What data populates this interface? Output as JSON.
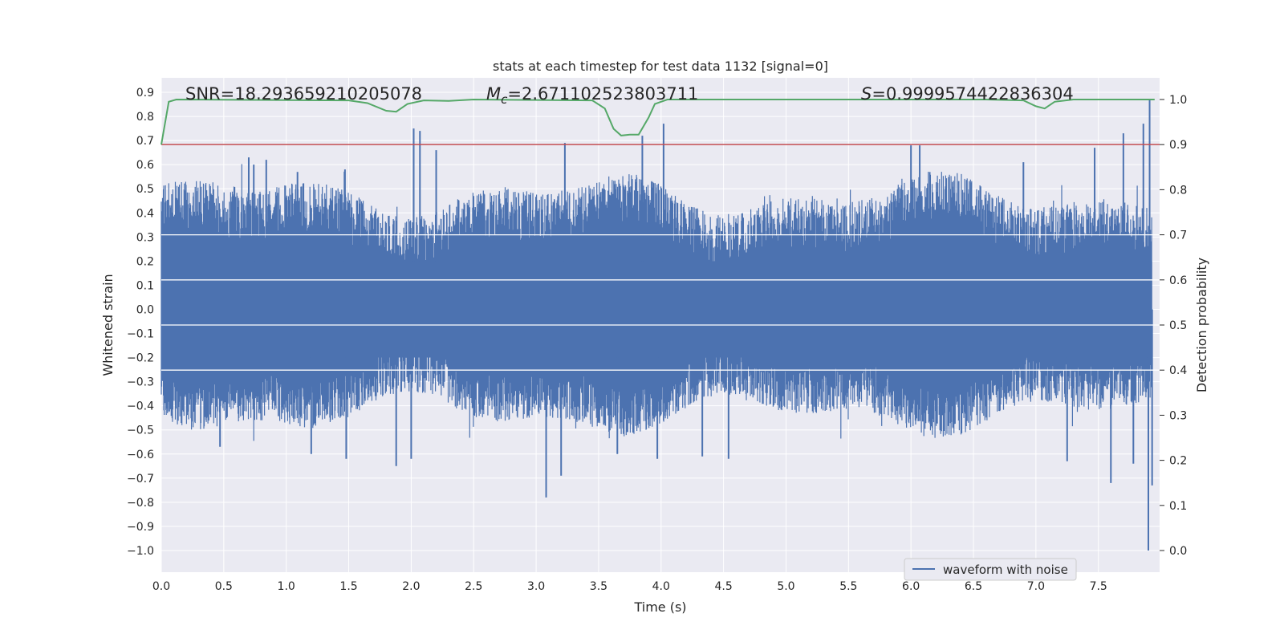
{
  "chart_data": {
    "type": "line",
    "title": "stats at each timestep for test data 1132 [signal=0]",
    "xlabel": "Time (s)",
    "ylabel": "Whitened strain",
    "y2label": "Detection probability",
    "xlim": [
      0.0,
      7.99
    ],
    "ylim": [
      -1.09,
      0.96
    ],
    "y2lim": [
      -0.048,
      1.048
    ],
    "xticks": [
      0.0,
      0.5,
      1.0,
      1.5,
      2.0,
      2.5,
      3.0,
      3.5,
      4.0,
      4.5,
      5.0,
      5.5,
      6.0,
      6.5,
      7.0,
      7.5
    ],
    "xtick_labels": [
      "0.0",
      "0.5",
      "1.0",
      "1.5",
      "2.0",
      "2.5",
      "3.0",
      "3.5",
      "4.0",
      "4.5",
      "5.0",
      "5.5",
      "6.0",
      "6.5",
      "7.0",
      "7.5"
    ],
    "yticks": [
      0.9,
      0.8,
      0.7,
      0.6,
      0.5,
      0.4,
      0.3,
      0.2,
      0.1,
      0.0,
      -0.1,
      -0.2,
      -0.3,
      -0.4,
      -0.5,
      -0.6,
      -0.7,
      -0.8,
      -0.9,
      -1.0
    ],
    "ytick_labels": [
      "0.9",
      "0.8",
      "0.7",
      "0.6",
      "0.5",
      "0.4",
      "0.3",
      "0.2",
      "0.1",
      "0.0",
      "−0.1",
      "−0.2",
      "−0.3",
      "−0.4",
      "−0.5",
      "−0.6",
      "−0.7",
      "−0.8",
      "−0.9",
      "−1.0"
    ],
    "y2ticks": [
      1.0,
      0.9,
      0.8,
      0.7,
      0.6,
      0.5,
      0.4,
      0.3,
      0.2,
      0.1,
      0.0
    ],
    "y2tick_labels": [
      "1.0",
      "0.9",
      "0.8",
      "0.7",
      "0.6",
      "0.5",
      "0.4",
      "0.3",
      "0.2",
      "0.1",
      "0.0"
    ],
    "annotations": {
      "snr": "SNR=18.293659210205078",
      "mc_symbol": "M",
      "mc_sub": "c",
      "mc_value": "=2.671102523803711",
      "s_symbol": "S",
      "s_value": "=0.9999574422836304"
    },
    "legend": {
      "label": "waveform with noise",
      "position": "lower-right"
    },
    "colors": {
      "waveform": "#4c72b0",
      "probability": "#55a868",
      "threshold": "#c44e52",
      "background": "#eaeaf2",
      "grid": "#ffffff"
    },
    "threshold": 0.9,
    "waveform_spikes": [
      {
        "t": 0.7,
        "v": 0.63
      },
      {
        "t": 0.74,
        "v": 0.6
      },
      {
        "t": 0.84,
        "v": 0.62
      },
      {
        "t": 1.09,
        "v": 0.57
      },
      {
        "t": 1.47,
        "v": 0.58
      },
      {
        "t": 2.02,
        "v": 0.75
      },
      {
        "t": 2.07,
        "v": 0.74
      },
      {
        "t": 2.2,
        "v": 0.66
      },
      {
        "t": 3.23,
        "v": 0.69
      },
      {
        "t": 3.85,
        "v": 0.72
      },
      {
        "t": 4.02,
        "v": 0.77
      },
      {
        "t": 6.0,
        "v": 0.68
      },
      {
        "t": 6.07,
        "v": 0.68
      },
      {
        "t": 6.9,
        "v": 0.61
      },
      {
        "t": 7.47,
        "v": 0.67
      },
      {
        "t": 7.7,
        "v": 0.73
      },
      {
        "t": 7.86,
        "v": 0.77
      },
      {
        "t": 7.91,
        "v": 0.87
      },
      {
        "t": 1.48,
        "v": -0.62
      },
      {
        "t": 1.88,
        "v": -0.65
      },
      {
        "t": 2.0,
        "v": -0.62
      },
      {
        "t": 3.08,
        "v": -0.78
      },
      {
        "t": 3.2,
        "v": -0.69
      },
      {
        "t": 3.65,
        "v": -0.6
      },
      {
        "t": 3.97,
        "v": -0.62
      },
      {
        "t": 4.33,
        "v": -0.61
      },
      {
        "t": 4.54,
        "v": -0.62
      },
      {
        "t": 7.25,
        "v": -0.63
      },
      {
        "t": 7.6,
        "v": -0.72
      },
      {
        "t": 7.78,
        "v": -0.64
      },
      {
        "t": 7.9,
        "v": -1.0
      },
      {
        "t": 7.93,
        "v": -0.73
      },
      {
        "t": 1.2,
        "v": -0.6
      },
      {
        "t": 0.47,
        "v": -0.57
      }
    ],
    "probability": [
      {
        "t": 0.0,
        "p": 0.9
      },
      {
        "t": 0.06,
        "p": 0.995
      },
      {
        "t": 0.12,
        "p": 1.0
      },
      {
        "t": 1.5,
        "p": 0.998
      },
      {
        "t": 1.65,
        "p": 0.992
      },
      {
        "t": 1.8,
        "p": 0.975
      },
      {
        "t": 1.88,
        "p": 0.973
      },
      {
        "t": 1.97,
        "p": 0.99
      },
      {
        "t": 2.1,
        "p": 0.998
      },
      {
        "t": 2.3,
        "p": 0.997
      },
      {
        "t": 2.5,
        "p": 1.0
      },
      {
        "t": 3.45,
        "p": 0.998
      },
      {
        "t": 3.55,
        "p": 0.98
      },
      {
        "t": 3.62,
        "p": 0.935
      },
      {
        "t": 3.68,
        "p": 0.92
      },
      {
        "t": 3.75,
        "p": 0.922
      },
      {
        "t": 3.82,
        "p": 0.922
      },
      {
        "t": 3.9,
        "p": 0.96
      },
      {
        "t": 3.95,
        "p": 0.99
      },
      {
        "t": 4.05,
        "p": 1.0
      },
      {
        "t": 6.6,
        "p": 1.0
      },
      {
        "t": 6.9,
        "p": 0.998
      },
      {
        "t": 7.0,
        "p": 0.985
      },
      {
        "t": 7.07,
        "p": 0.98
      },
      {
        "t": 7.15,
        "p": 0.995
      },
      {
        "t": 7.3,
        "p": 1.0
      },
      {
        "t": 7.95,
        "p": 1.0
      }
    ]
  }
}
